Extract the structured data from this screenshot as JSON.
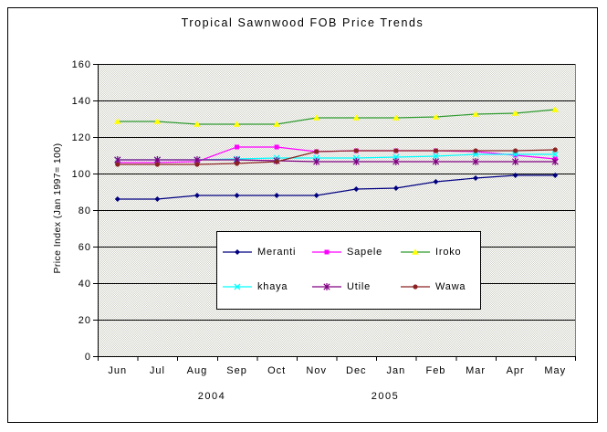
{
  "chart_data": {
    "type": "line",
    "title": "Tropical Sawnwood FOB Price Trends",
    "ylabel": "Price Index (Jan 1997= 100)",
    "ylim": [
      0,
      160
    ],
    "ytick_interval": 20,
    "yticks": [
      0,
      20,
      40,
      60,
      80,
      100,
      120,
      140,
      160
    ],
    "categories": [
      "Jun",
      "Jul",
      "Aug",
      "Sep",
      "Oct",
      "Nov",
      "Dec",
      "Jan",
      "Feb",
      "Mar",
      "Apr",
      "May"
    ],
    "year_labels": [
      "2004",
      "2005"
    ],
    "grid": true,
    "legend_position": "inside-bottom-center",
    "plot_bg": "#E6E6E0",
    "series": [
      {
        "name": "Meranti",
        "color": "#000080",
        "marker": "diamond",
        "marker_color": "#000080",
        "values": [
          86,
          86,
          88,
          88,
          88,
          88,
          91.5,
          92,
          95.5,
          97.5,
          99,
          99
        ]
      },
      {
        "name": "Sapele",
        "color": "#FF00FF",
        "marker": "square",
        "marker_color": "#FF00FF",
        "values": [
          106,
          106,
          106.5,
          114.5,
          114.5,
          112,
          112.5,
          112.5,
          112.5,
          112,
          110,
          108
        ]
      },
      {
        "name": "Iroko",
        "color": "#2E9B2E",
        "marker": "triangle",
        "marker_color": "#FFFF00",
        "values": [
          128.5,
          128.5,
          127,
          127,
          127,
          130.5,
          130.5,
          130.5,
          131,
          132.5,
          133,
          135
        ]
      },
      {
        "name": "khaya",
        "color": "#00FFFF",
        "marker": "x",
        "marker_color": "#00FFFF",
        "values": [
          107.5,
          107.5,
          107.5,
          108,
          108.5,
          108.5,
          108.5,
          109,
          109.5,
          110.5,
          110.5,
          110.5
        ]
      },
      {
        "name": "Utile",
        "color": "#800080",
        "marker": "asterisk",
        "marker_color": "#800080",
        "values": [
          107.5,
          107.5,
          107.5,
          107.5,
          107,
          106.5,
          106.5,
          106.5,
          106.5,
          106.5,
          106.5,
          106.5
        ]
      },
      {
        "name": "Wawa",
        "color": "#8B2222",
        "marker": "circle",
        "marker_color": "#8B2222",
        "values": [
          105,
          105,
          105,
          105.5,
          106.5,
          112,
          112.5,
          112.5,
          112.5,
          112.5,
          112.5,
          113
        ]
      }
    ]
  }
}
